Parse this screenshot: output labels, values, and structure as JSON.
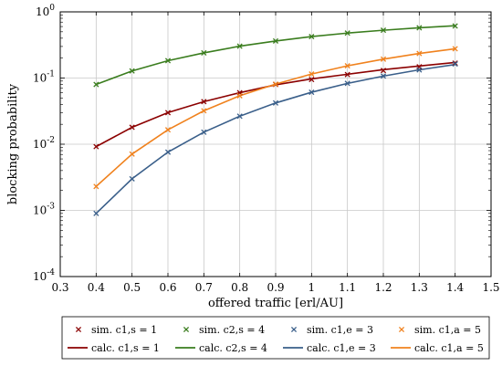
{
  "chart_data": {
    "type": "line",
    "xlabel": "offered traffic [erl/AU]",
    "ylabel": "blocking probability",
    "xlim": [
      0.3,
      1.5
    ],
    "ylim": [
      0.0001,
      1
    ],
    "yscale": "log",
    "grid": true,
    "legend_placement": "below",
    "x_ticks": [
      "0.3",
      "0.4",
      "0.5",
      "0.6",
      "0.7",
      "0.8",
      "0.9",
      "1",
      "1.1",
      "1.2",
      "1.3",
      "1.4",
      "1.5"
    ],
    "x": [
      0.4,
      0.5,
      0.6,
      0.7,
      0.8,
      0.9,
      1.0,
      1.1,
      1.2,
      1.3,
      1.4
    ],
    "series": [
      {
        "color": "#8b0000",
        "sim_name": "sim. c1,s = 1",
        "calc_name": "calc. c1,s = 1",
        "values": [
          0.0092,
          0.018,
          0.03,
          0.044,
          0.06,
          0.079,
          0.097,
          0.114,
          0.134,
          0.152,
          0.172
        ],
        "sim_values": [
          0.0092,
          0.018,
          0.03,
          0.044,
          0.06,
          0.08,
          0.095,
          0.113,
          0.13,
          0.148,
          0.168
        ]
      },
      {
        "color": "#3a7d1e",
        "sim_name": "sim. c2,s = 4",
        "calc_name": "calc. c2,s = 4",
        "values": [
          0.08,
          0.128,
          0.183,
          0.24,
          0.303,
          0.363,
          0.423,
          0.478,
          0.528,
          0.574,
          0.618
        ],
        "sim_values": [
          0.08,
          0.128,
          0.183,
          0.24,
          0.303,
          0.363,
          0.423,
          0.478,
          0.528,
          0.574,
          0.612
        ]
      },
      {
        "color": "#3a5f8a",
        "sim_name": "sim. c1,e = 3",
        "calc_name": "calc. c1,e = 3",
        "values": [
          0.0009,
          0.003,
          0.0076,
          0.0152,
          0.0265,
          0.042,
          0.061,
          0.083,
          0.107,
          0.133,
          0.16
        ],
        "sim_values": [
          0.0009,
          0.003,
          0.0076,
          0.0152,
          0.0265,
          0.042,
          0.061,
          0.083,
          0.107,
          0.133,
          0.163
        ]
      },
      {
        "color": "#f0821e",
        "sim_name": "sim. c1,a = 5",
        "calc_name": "calc. c1,a = 5",
        "values": [
          0.0023,
          0.0071,
          0.0165,
          0.032,
          0.054,
          0.081,
          0.115,
          0.153,
          0.193,
          0.235,
          0.277
        ],
        "sim_values": [
          0.0023,
          0.0071,
          0.0165,
          0.032,
          0.054,
          0.081,
          0.115,
          0.153,
          0.193,
          0.235,
          0.277
        ]
      }
    ],
    "y_tick_exponents": [
      "-4",
      "-3",
      "-2",
      "-1",
      "0"
    ],
    "y_tick_base": "10"
  }
}
